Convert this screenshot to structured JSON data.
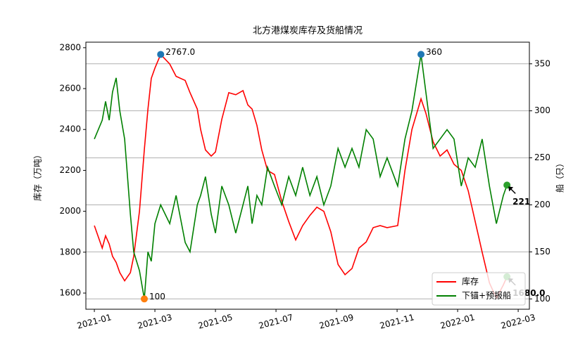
{
  "chart_data": {
    "type": "line",
    "title": "北方港煤炭库存及货船情况",
    "ylabel": "库存（万吨）",
    "y2label": "船（只）",
    "x": [
      0,
      0.26,
      0.37,
      0.49,
      0.6,
      0.72,
      0.84,
      1,
      1.19,
      1.3,
      1.49,
      1.65,
      1.77,
      1.88,
      2,
      2.19,
      2.49,
      2.7,
      3,
      3.16,
      3.4,
      3.51,
      3.67,
      3.86,
      4,
      4.21,
      4.44,
      4.67,
      4.91,
      5.07,
      5.21,
      5.37,
      5.53,
      5.72,
      5.95,
      6.19,
      6.42,
      6.65,
      6.88,
      7.12,
      7.35,
      7.58,
      7.81,
      8.05,
      8.28,
      8.51,
      8.74,
      8.98,
      9.21,
      9.44,
      9.67,
      10.02,
      10.26,
      10.49,
      10.79,
      10.95,
      11.19,
      11.42,
      11.65,
      11.88,
      12.12,
      12.35,
      12.58,
      12.81,
      13.05,
      13.28,
      13.51,
      13.63
    ],
    "series": [
      {
        "name": "库存",
        "color": "#ff0000",
        "axis": "y",
        "values": [
          1930,
          1820,
          1880,
          1840,
          1780,
          1750,
          1700,
          1660,
          1700,
          1780,
          2000,
          2300,
          2500,
          2650,
          2700,
          2767,
          2720,
          2660,
          2640,
          2580,
          2500,
          2400,
          2300,
          2270,
          2290,
          2450,
          2580,
          2570,
          2590,
          2520,
          2500,
          2420,
          2300,
          2200,
          2180,
          2050,
          1950,
          1860,
          1930,
          1980,
          2020,
          2000,
          1900,
          1740,
          1690,
          1720,
          1820,
          1850,
          1920,
          1930,
          1920,
          1930,
          2200,
          2400,
          2550,
          2480,
          2340,
          2270,
          2300,
          2230,
          2200,
          2100,
          1950,
          1800,
          1650,
          1575,
          1640,
          1680
        ]
      },
      {
        "name": "下锚+预报船",
        "color": "#008000",
        "axis": "y2",
        "values": [
          270,
          290,
          310,
          290,
          320,
          335,
          300,
          270,
          190,
          150,
          130,
          100,
          150,
          140,
          180,
          200,
          180,
          210,
          160,
          150,
          200,
          210,
          230,
          190,
          170,
          220,
          200,
          170,
          200,
          220,
          180,
          210,
          200,
          240,
          220,
          200,
          230,
          210,
          240,
          210,
          230,
          200,
          220,
          260,
          240,
          260,
          240,
          280,
          270,
          230,
          250,
          220,
          270,
          300,
          360,
          320,
          260,
          270,
          280,
          270,
          220,
          250,
          240,
          270,
          220,
          180,
          210,
          221
        ]
      }
    ],
    "xlim": [
      -0.28,
      14.37
    ],
    "xticks": [
      {
        "value": 0,
        "label": "2021-01"
      },
      {
        "value": 2,
        "label": "2021-03"
      },
      {
        "value": 4,
        "label": "2021-05"
      },
      {
        "value": 6,
        "label": "2021-07"
      },
      {
        "value": 8,
        "label": "2021-09"
      },
      {
        "value": 10,
        "label": "2021-11"
      },
      {
        "value": 12,
        "label": "2022-01"
      },
      {
        "value": 14,
        "label": "2022-03"
      }
    ],
    "ylim": [
      1521,
      2827
    ],
    "yticks": [
      1600,
      1800,
      2000,
      2200,
      2400,
      2600,
      2800
    ],
    "y2lim": [
      89,
      373
    ],
    "y2ticks": [
      100,
      150,
      200,
      250,
      300,
      350
    ],
    "grid": "y2",
    "legend": "lower right",
    "annotations": [
      {
        "text": "2767.0",
        "x": 2.19,
        "y": 2767,
        "axis": "y",
        "color": "#1f77b4"
      },
      {
        "text": "100",
        "x": 1.65,
        "y": 100,
        "axis": "y2",
        "color": "#ff7f0e"
      },
      {
        "text": "360",
        "x": 10.79,
        "y": 360,
        "axis": "y2",
        "color": "#1f77b4"
      },
      {
        "text": "221",
        "x": 13.63,
        "y": 221,
        "axis": "y2",
        "color": "#2ca02c",
        "arrow": true
      },
      {
        "text": "1680.0",
        "x": 13.63,
        "y": 1680,
        "axis": "y",
        "color": "#2ca02c",
        "arrow": true
      }
    ]
  }
}
